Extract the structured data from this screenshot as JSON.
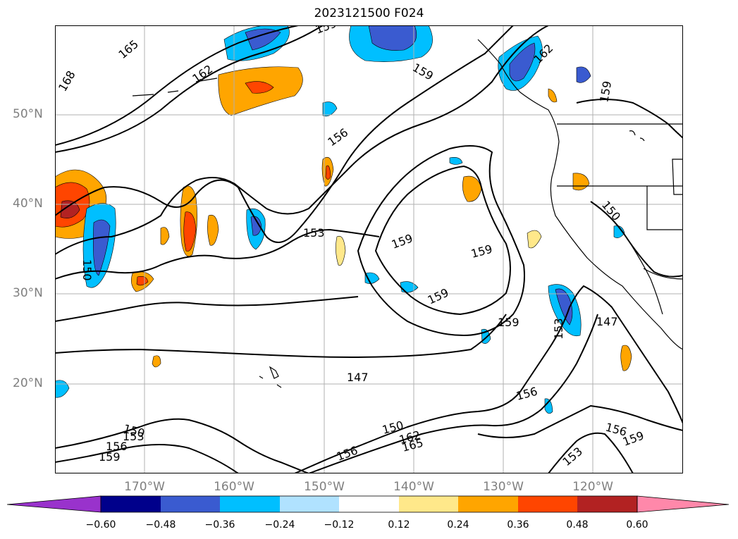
{
  "title": "2023121500 F024",
  "map": {
    "lat_ticks": [
      {
        "label": "50°N",
        "lat": 50
      },
      {
        "label": "40°N",
        "lat": 40
      },
      {
        "label": "30°N",
        "lat": 30
      },
      {
        "label": "20°N",
        "lat": 20
      }
    ],
    "lon_ticks": [
      {
        "label": "170°W",
        "lon": -170
      },
      {
        "label": "160°W",
        "lon": -160
      },
      {
        "label": "150°W",
        "lon": -150
      },
      {
        "label": "140°W",
        "lon": -140
      },
      {
        "label": "130°W",
        "lon": -130
      },
      {
        "label": "120°W",
        "lon": -120
      }
    ],
    "contour_labels": [
      "165",
      "168",
      "162",
      "159",
      "156",
      "153",
      "150",
      "147",
      "159",
      "162",
      "159",
      "156",
      "153",
      "150",
      "147",
      "153",
      "156",
      "150",
      "159",
      "165",
      "162",
      "156",
      "150",
      "159",
      "156",
      "153",
      "159",
      "159",
      "159",
      "153",
      "147",
      "156",
      "153",
      "159"
    ]
  },
  "colorbar": {
    "ticks": [
      "−0.60",
      "−0.48",
      "−0.36",
      "−0.24",
      "−0.12",
      "0.12",
      "0.24",
      "0.36",
      "0.48",
      "0.60"
    ],
    "colors": [
      "#9932cc",
      "#00008b",
      "#3a5bd0",
      "#00bfff",
      "#b0e2ff",
      "#ffffff",
      "#ffe88a",
      "#ffa500",
      "#ff4500",
      "#b22222",
      "#ff88aa"
    ]
  }
}
